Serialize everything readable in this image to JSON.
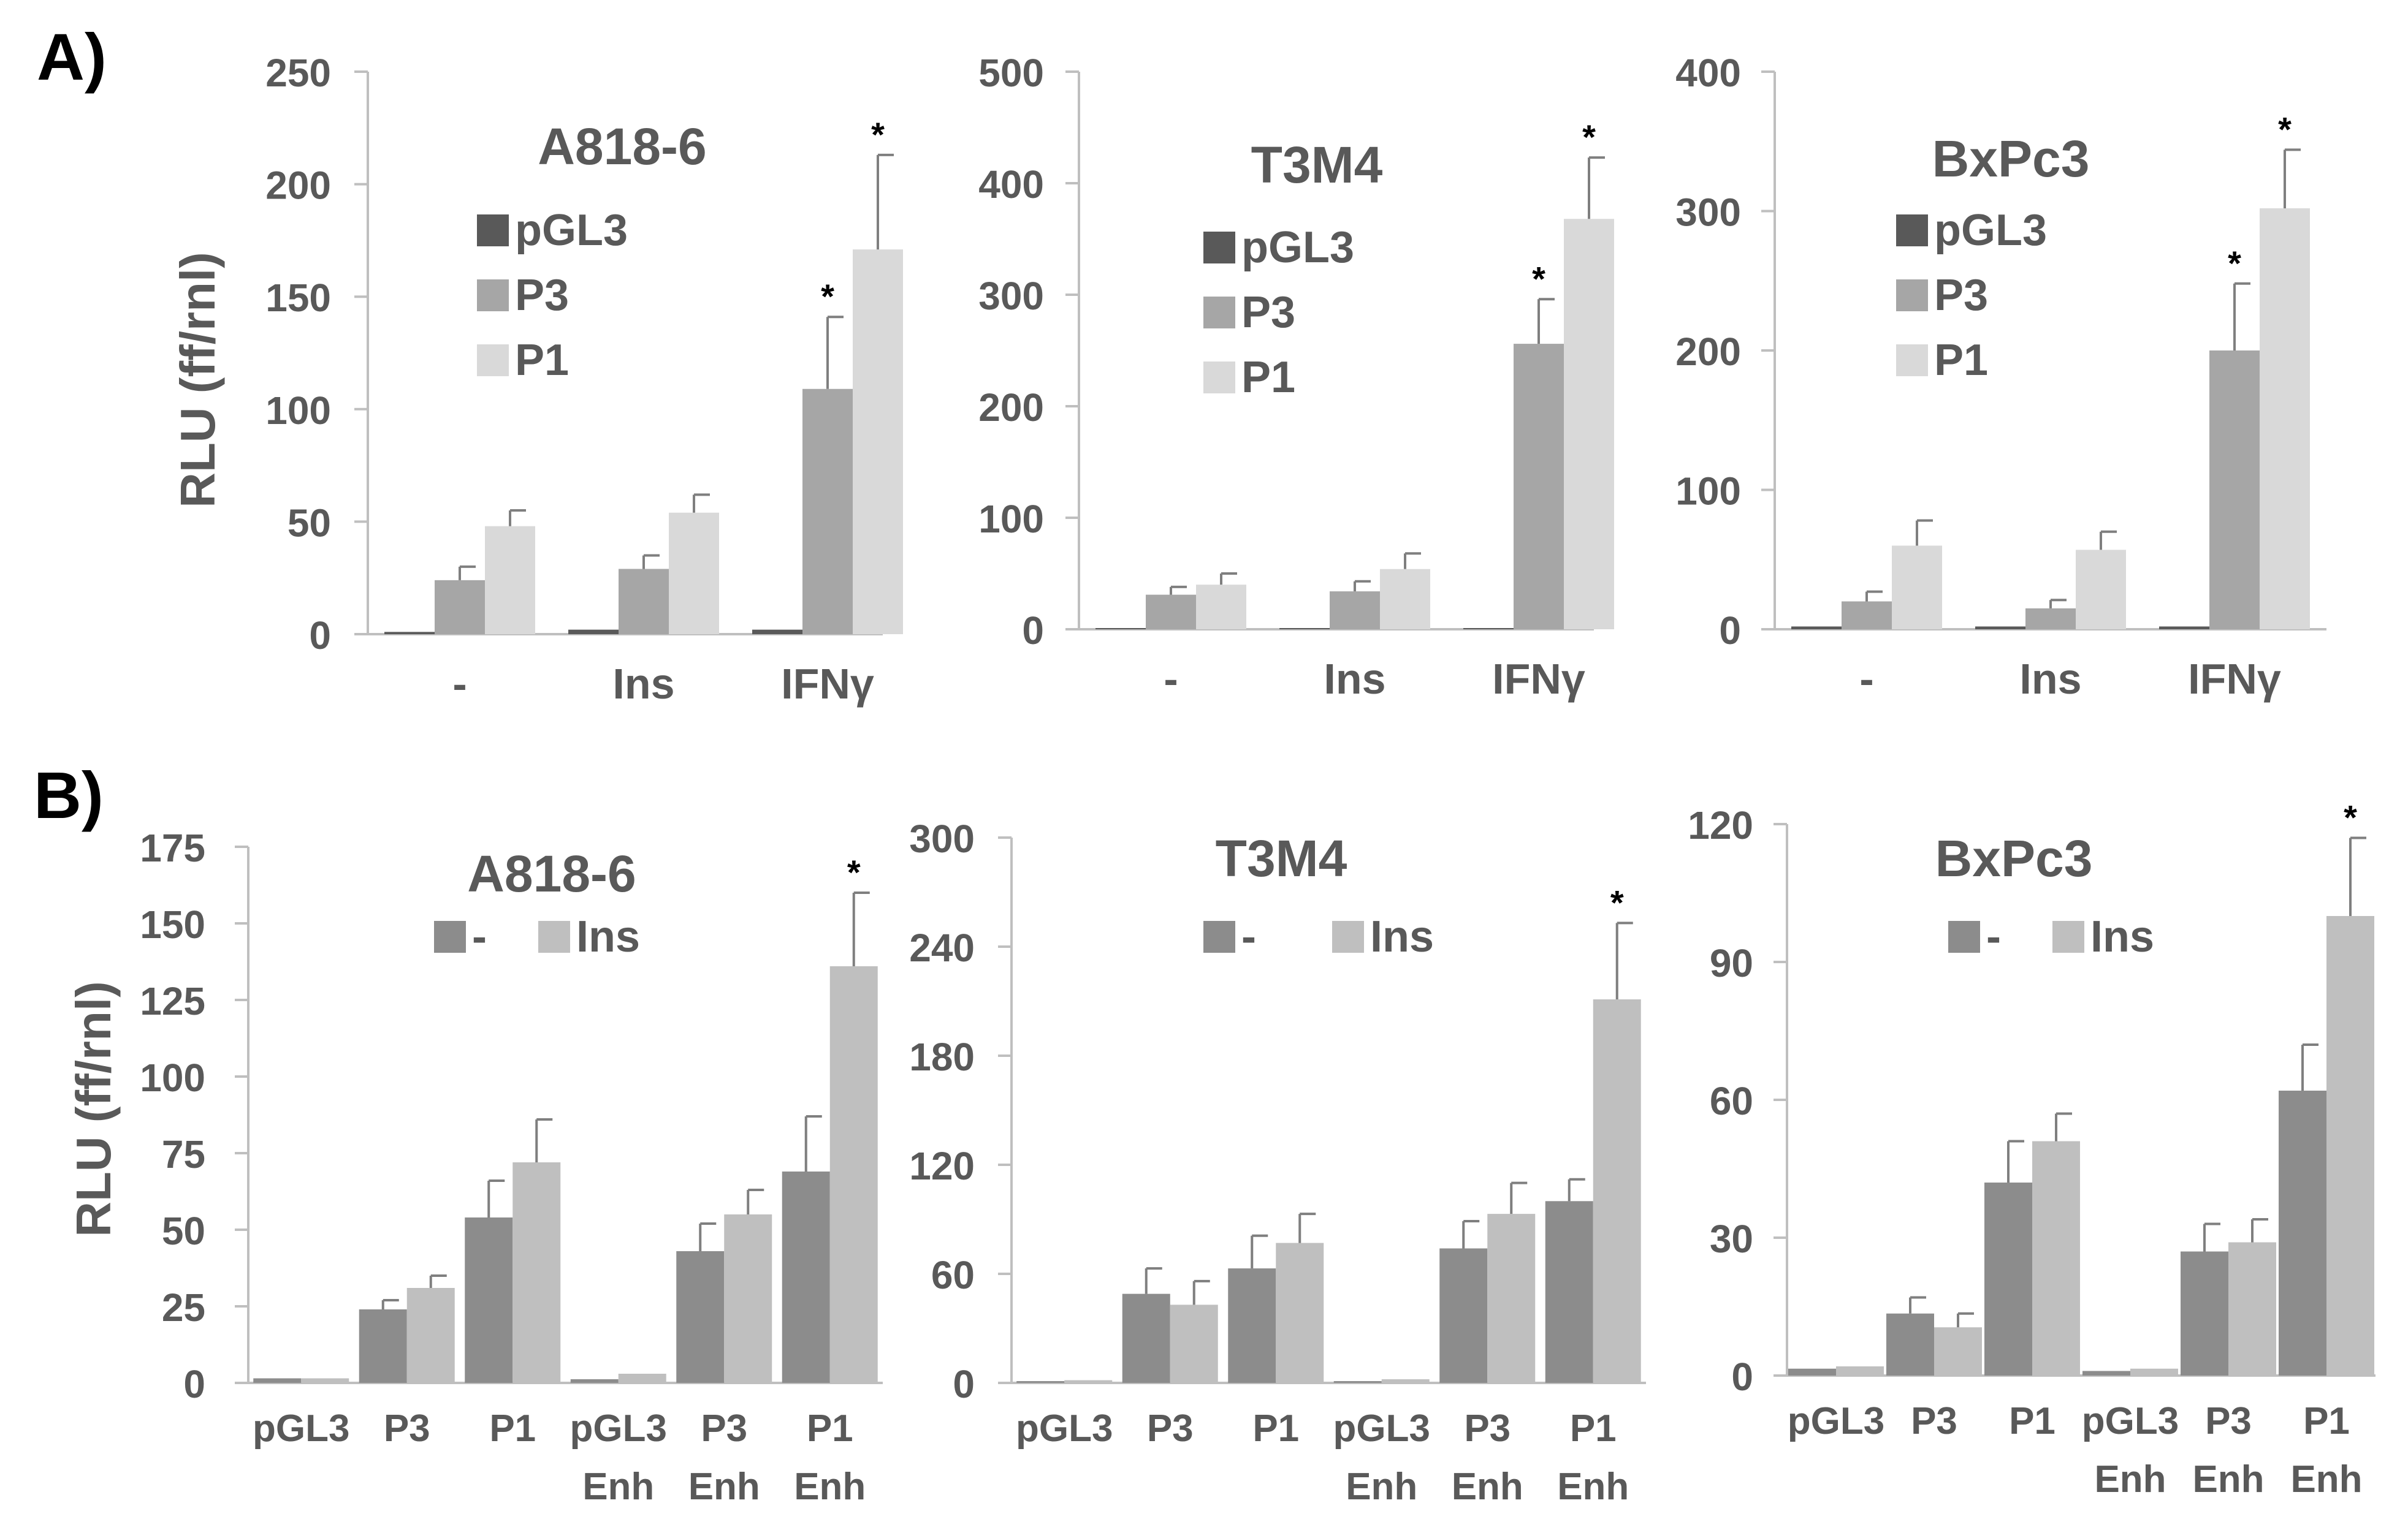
{
  "panel_labels": [
    "A)",
    "B)"
  ],
  "y_axis_label": "RLU (ff/rnl)",
  "colors": {
    "pGL3": "#595959",
    "P3": "#a6a6a6",
    "P1": "#d9d9d9",
    "minus": "#8c8c8c",
    "Ins": "#bfbfbf",
    "axis": "#bfbfbf",
    "text": "#595959"
  },
  "chart_data": [
    {
      "type": "bar",
      "panel": "A",
      "title": "A818-6",
      "ylabel": "RLU (ff/rnl)",
      "categories": [
        "-",
        "Ins",
        "IFNγ"
      ],
      "ylim": [
        0,
        250
      ],
      "yticks": [
        0,
        50,
        100,
        150,
        200,
        250
      ],
      "legend": "top-center",
      "grid": false,
      "series": [
        {
          "name": "pGL3",
          "values": [
            1,
            2,
            2
          ],
          "errors": [
            0,
            0,
            0
          ],
          "stars": [
            false,
            false,
            false
          ]
        },
        {
          "name": "P3",
          "values": [
            24,
            29,
            109
          ],
          "errors": [
            6,
            6,
            32
          ],
          "stars": [
            false,
            false,
            true
          ]
        },
        {
          "name": "P1",
          "values": [
            48,
            54,
            171
          ],
          "errors": [
            7,
            8,
            42
          ],
          "stars": [
            false,
            false,
            true
          ]
        }
      ]
    },
    {
      "type": "bar",
      "panel": "A",
      "title": "T3M4",
      "categories": [
        "-",
        "Ins",
        "IFNγ"
      ],
      "ylim": [
        0,
        500
      ],
      "yticks": [
        0,
        100,
        200,
        300,
        400,
        500
      ],
      "legend": "top-center",
      "grid": false,
      "series": [
        {
          "name": "pGL3",
          "values": [
            0,
            0,
            0
          ],
          "errors": [
            0,
            0,
            0
          ],
          "stars": [
            false,
            false,
            false
          ]
        },
        {
          "name": "P3",
          "values": [
            31,
            34,
            256
          ],
          "errors": [
            7,
            9,
            40
          ],
          "stars": [
            false,
            false,
            true
          ]
        },
        {
          "name": "P1",
          "values": [
            40,
            54,
            368
          ],
          "errors": [
            10,
            14,
            55
          ],
          "stars": [
            false,
            false,
            true
          ]
        }
      ]
    },
    {
      "type": "bar",
      "panel": "A",
      "title": "BxPc3",
      "categories": [
        "-",
        "Ins",
        "IFNγ"
      ],
      "ylim": [
        0,
        400
      ],
      "yticks": [
        0,
        100,
        200,
        300,
        400
      ],
      "legend": "top-center",
      "grid": false,
      "series": [
        {
          "name": "pGL3",
          "values": [
            2,
            2,
            2
          ],
          "errors": [
            0,
            0,
            0
          ],
          "stars": [
            false,
            false,
            false
          ]
        },
        {
          "name": "P3",
          "values": [
            20,
            15,
            200
          ],
          "errors": [
            7,
            6,
            48
          ],
          "stars": [
            false,
            false,
            true
          ]
        },
        {
          "name": "P1",
          "values": [
            60,
            57,
            302
          ],
          "errors": [
            18,
            13,
            42
          ],
          "stars": [
            false,
            false,
            true
          ]
        }
      ]
    },
    {
      "type": "bar",
      "panel": "B",
      "title": "A818-6",
      "ylabel": "RLU (ff/rnl)",
      "categories": [
        [
          "pGL3"
        ],
        [
          "P3"
        ],
        [
          "P1"
        ],
        [
          "pGL3",
          "Enh"
        ],
        [
          "P3",
          "Enh"
        ],
        [
          "P1",
          "Enh"
        ]
      ],
      "ylim": [
        0,
        175
      ],
      "yticks": [
        0,
        25,
        50,
        75,
        100,
        125,
        150,
        175
      ],
      "legend": "top-center",
      "grid": false,
      "series": [
        {
          "name": "-",
          "values": [
            1.5,
            24,
            54,
            1.2,
            43,
            69
          ],
          "errors": [
            1,
            3,
            12,
            0.8,
            9,
            18
          ],
          "stars": [
            false,
            false,
            false,
            false,
            false,
            false
          ]
        },
        {
          "name": "Ins",
          "values": [
            1.5,
            31,
            72,
            3,
            55,
            136
          ],
          "errors": [
            1,
            4,
            14,
            1,
            8,
            24
          ],
          "stars": [
            false,
            false,
            false,
            false,
            false,
            true
          ]
        }
      ]
    },
    {
      "type": "bar",
      "panel": "B",
      "title": "T3M4",
      "categories": [
        [
          "pGL3"
        ],
        [
          "P3"
        ],
        [
          "P1"
        ],
        [
          "pGL3",
          "Enh"
        ],
        [
          "P3",
          "Enh"
        ],
        [
          "P1",
          "Enh"
        ]
      ],
      "ylim": [
        0,
        300
      ],
      "yticks": [
        0,
        60,
        120,
        180,
        240,
        300
      ],
      "legend": "top-center",
      "grid": false,
      "series": [
        {
          "name": "-",
          "values": [
            1,
            49,
            63,
            1,
            74,
            100
          ],
          "errors": [
            1,
            14,
            18,
            1,
            15,
            12
          ],
          "stars": [
            false,
            false,
            false,
            false,
            false,
            false
          ]
        },
        {
          "name": "Ins",
          "values": [
            1.5,
            43,
            77,
            2,
            93,
            211
          ],
          "errors": [
            1,
            13,
            16,
            1,
            17,
            42
          ],
          "stars": [
            false,
            false,
            false,
            false,
            false,
            true
          ]
        }
      ]
    },
    {
      "type": "bar",
      "panel": "B",
      "title": "BxPc3",
      "categories": [
        [
          "pGL3"
        ],
        [
          "P3"
        ],
        [
          "P1"
        ],
        [
          "pGL3",
          "Enh"
        ],
        [
          "P3",
          "Enh"
        ],
        [
          "P1",
          "Enh"
        ]
      ],
      "ylim": [
        0,
        120
      ],
      "yticks": [
        0,
        30,
        60,
        90,
        120
      ],
      "legend": "top-center",
      "grid": false,
      "series": [
        {
          "name": "-",
          "values": [
            1.5,
            13.5,
            42,
            1,
            27,
            62
          ],
          "errors": [
            0.5,
            3.5,
            9,
            0.5,
            6,
            10
          ],
          "stars": [
            false,
            false,
            false,
            false,
            false,
            false
          ]
        },
        {
          "name": "Ins",
          "values": [
            2,
            10.5,
            51,
            1.5,
            29,
            100
          ],
          "errors": [
            1,
            3,
            6,
            0.5,
            5,
            17
          ],
          "stars": [
            false,
            false,
            false,
            false,
            false,
            true
          ]
        }
      ]
    }
  ]
}
